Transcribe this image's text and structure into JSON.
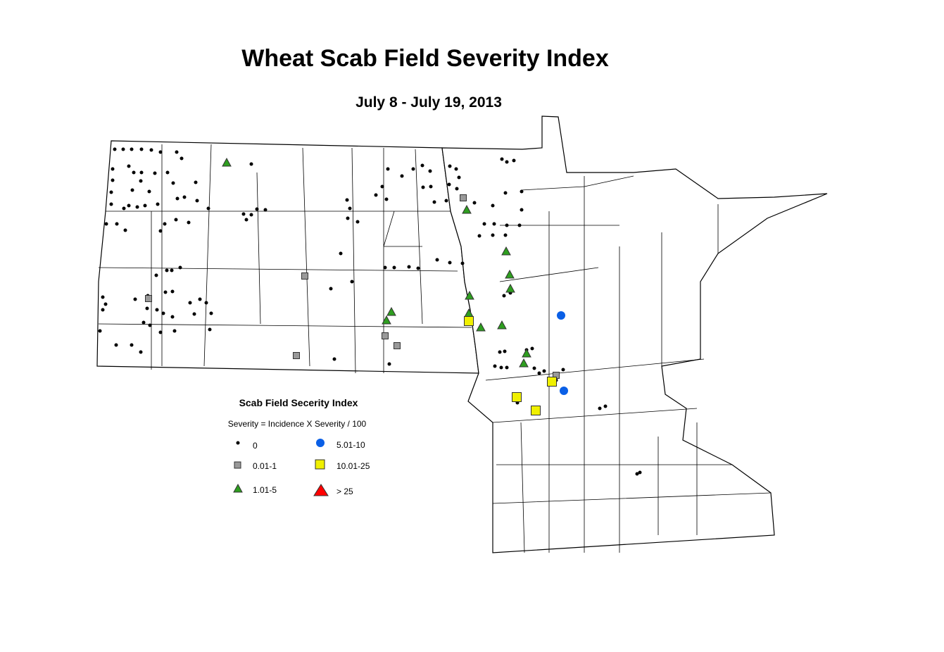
{
  "title": "Wheat Scab Field Severity Index",
  "subtitle": "July 8 - July 19, 2013",
  "legend": {
    "title": "Scab Field Secerity Index",
    "formula": "Severity = Incidence X Severity / 100",
    "items": [
      {
        "label": "0"
      },
      {
        "label": "0.01-1"
      },
      {
        "label": "1.01-5"
      },
      {
        "label": "5.01-10"
      },
      {
        "label": "10.01-25"
      },
      {
        "label": "> 25"
      }
    ]
  }
}
